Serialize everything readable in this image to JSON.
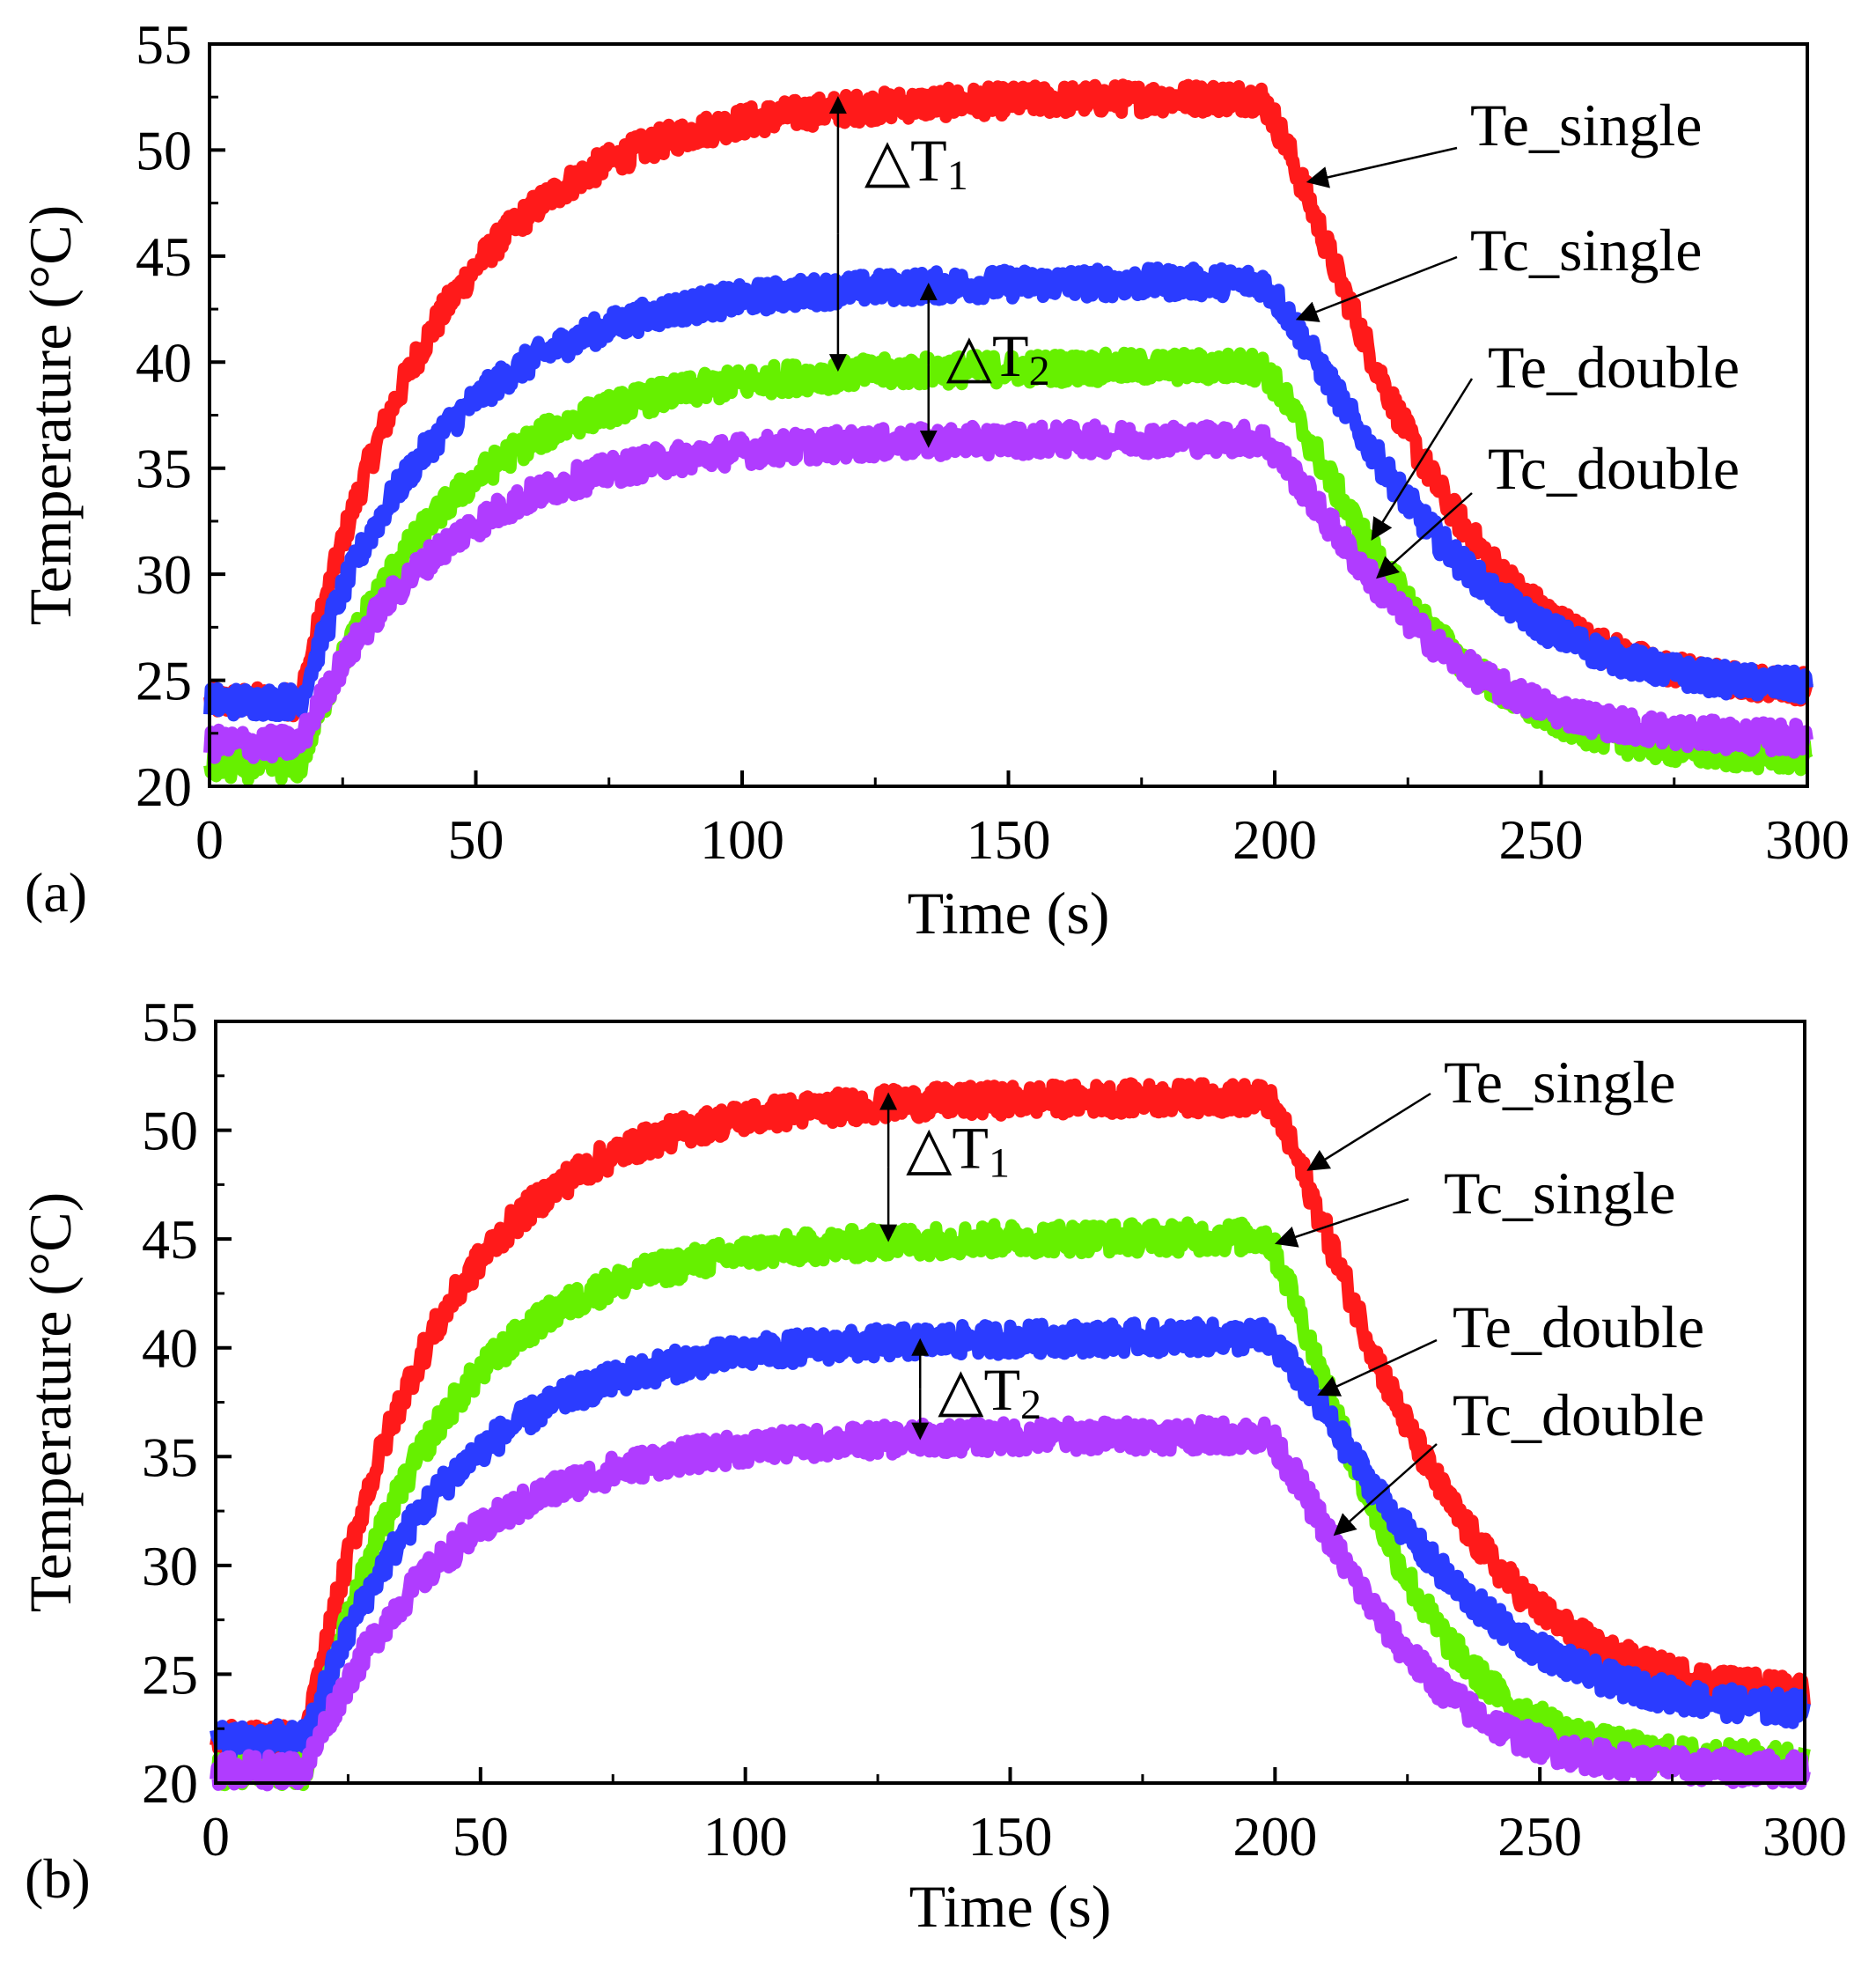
{
  "chart_data": [
    {
      "type": "line",
      "panel_label": "(a)",
      "xlabel": "Time (s)",
      "ylabel": "Temperature (°C)",
      "xlim": [
        0,
        300
      ],
      "ylim": [
        20,
        55
      ],
      "xticks": [
        0,
        50,
        100,
        150,
        200,
        250,
        300
      ],
      "yticks": [
        20,
        25,
        30,
        35,
        40,
        45,
        50,
        55
      ],
      "series": [
        {
          "name": "Te_single",
          "color": "#ff1a1a",
          "start": 24,
          "plateau": 52.5,
          "end": 24.5,
          "tau_rise": 26,
          "tau_fall": 32,
          "ramp_drop": 0.55
        },
        {
          "name": "Tc_single",
          "color": "#2b3cff",
          "start": 24,
          "plateau": 43.8,
          "end": 24.5,
          "tau_rise": 26,
          "tau_fall": 34,
          "ramp_drop": 0.42
        },
        {
          "name": "Te_double",
          "color": "#66f000",
          "start": 21,
          "plateau": 39.8,
          "end": 21.3,
          "tau_rise": 26,
          "tau_fall": 30,
          "ramp_drop": 0.42
        },
        {
          "name": "Tc_double",
          "color": "#b03cff",
          "start": 22,
          "plateau": 36.4,
          "end": 22.2,
          "tau_rise": 26,
          "tau_fall": 30,
          "ramp_drop": 0.42
        }
      ],
      "heat_on_s": 17,
      "heat_off_s": 197,
      "callouts": [
        {
          "label": "Te_single",
          "target": "Te_single"
        },
        {
          "label": "Tc_single",
          "target": "Tc_single"
        },
        {
          "label": "Te_double",
          "target": "Te_double"
        },
        {
          "label": "Tc_double",
          "target": "Tc_double"
        }
      ],
      "deltas": [
        {
          "label": "△T",
          "sub": "1",
          "x": 118,
          "y_top": 52.3,
          "y_bottom": 39.8
        },
        {
          "label": "△T",
          "sub": "2",
          "x": 135,
          "y_top": 43.5,
          "y_bottom": 36.2
        }
      ]
    },
    {
      "type": "line",
      "panel_label": "(b)",
      "xlabel": "Time (s)",
      "ylabel": "Temperature (°C)",
      "xlim": [
        0,
        300
      ],
      "ylim": [
        20,
        55
      ],
      "xticks": [
        0,
        50,
        100,
        150,
        200,
        250,
        300
      ],
      "yticks": [
        20,
        25,
        30,
        35,
        40,
        45,
        50,
        55
      ],
      "series": [
        {
          "name": "Te_single",
          "color": "#ff1a1a",
          "start": 22,
          "plateau": 51.5,
          "end": 24,
          "tau_rise": 24,
          "tau_fall": 32,
          "ramp_drop": 0.5
        },
        {
          "name": "Tc_single",
          "color": "#66f000",
          "start": 20.6,
          "plateau": 45.1,
          "end": 21,
          "tau_rise": 24,
          "tau_fall": 26,
          "ramp_drop": 0.4
        },
        {
          "name": "Te_double",
          "color": "#2b3cff",
          "start": 22,
          "plateau": 40.5,
          "end": 23.2,
          "tau_rise": 26,
          "tau_fall": 34,
          "ramp_drop": 0.4
        },
        {
          "name": "Tc_double",
          "color": "#b03cff",
          "start": 20.6,
          "plateau": 36.0,
          "end": 20.6,
          "tau_rise": 26,
          "tau_fall": 26,
          "ramp_drop": 0.4
        }
      ],
      "heat_on_s": 17,
      "heat_off_s": 198,
      "callouts": [
        {
          "label": "Te_single",
          "target": "Te_single"
        },
        {
          "label": "Tc_single",
          "target": "Tc_single"
        },
        {
          "label": "Te_double",
          "target": "Te_double"
        },
        {
          "label": "Tc_double",
          "target": "Tc_double"
        }
      ],
      "deltas": [
        {
          "label": "△T",
          "sub": "1",
          "x": 127,
          "y_top": 51.5,
          "y_bottom": 45.1
        },
        {
          "label": "△T",
          "sub": "2",
          "x": 133,
          "y_top": 40.2,
          "y_bottom": 36.0
        }
      ]
    }
  ]
}
